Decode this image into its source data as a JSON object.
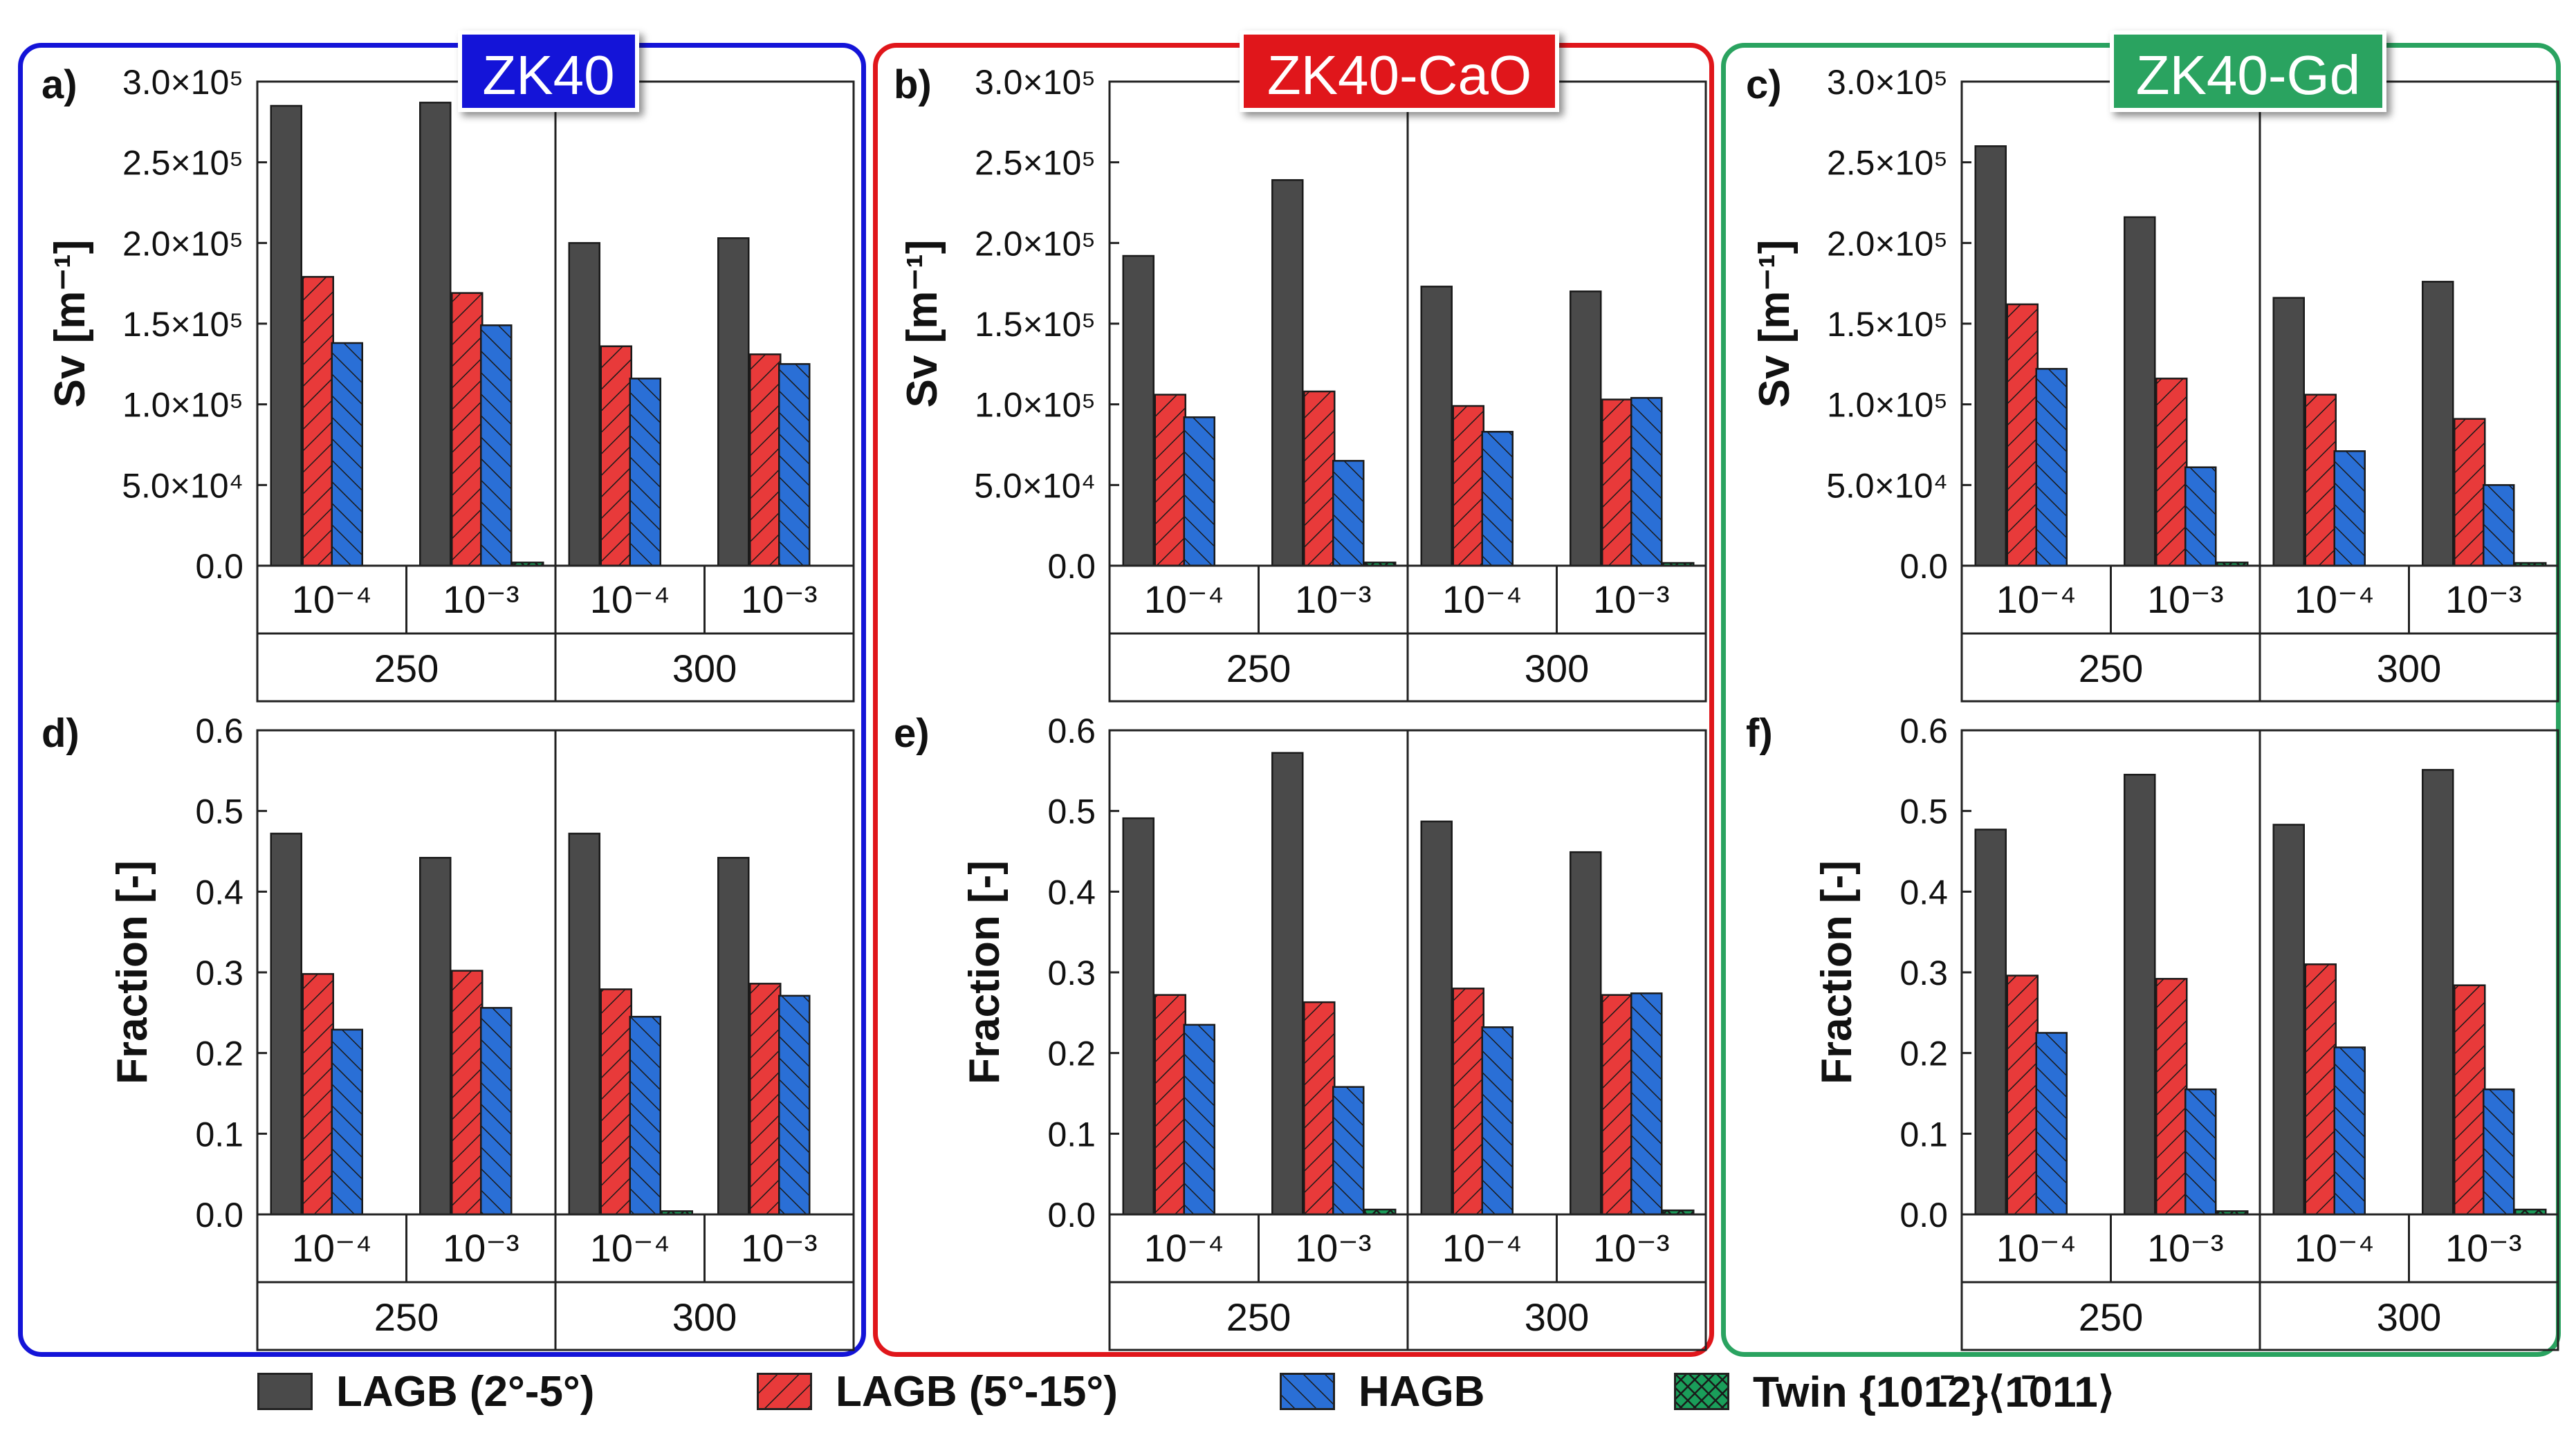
{
  "colors": {
    "lagb_2_5": "#4a4a4a",
    "lagb_5_15": "#e83a3a",
    "hagb": "#2a6fd6",
    "twin": "#1a9e5a",
    "zk40_frame": "#1414d8",
    "zk40cao_frame": "#e0161b",
    "zk40gd_frame": "#2aa360"
  },
  "alloy_tags": [
    {
      "label": "ZK40",
      "color": "#1414d8"
    },
    {
      "label": "ZK40-CaO",
      "color": "#e0161b"
    },
    {
      "label": "ZK40-Gd",
      "color": "#2aa360"
    }
  ],
  "legend": [
    {
      "label": "LAGB (2°-5°)",
      "color": "#4a4a4a",
      "pattern": "solid"
    },
    {
      "label": "LAGB (5°-15°)",
      "color": "#e83a3a",
      "pattern": "hatch-up"
    },
    {
      "label": "HAGB",
      "color": "#2a6fd6",
      "pattern": "hatch-down"
    },
    {
      "label": "Twin {101̄2}⟨1̄011⟩",
      "color": "#1a9e5a",
      "pattern": "cross"
    }
  ],
  "chart_data": [
    {
      "type": "bar",
      "panel": "a)",
      "alloy": "ZK40",
      "ylabel": "Sv [m⁻¹]",
      "ylim": [
        0,
        300000
      ],
      "yticks": [
        "0.0",
        "5.0×10⁴",
        "1.0×10⁵",
        "1.5×10⁵",
        "2.0×10⁵",
        "2.5×10⁵",
        "3.0×10⁵"
      ],
      "strain_rates": [
        "10⁻⁴",
        "10⁻³",
        "10⁻⁴",
        "10⁻³"
      ],
      "temperatures": [
        "250",
        "300"
      ],
      "series": [
        {
          "name": "LAGB (2°-5°)",
          "values": [
            285000,
            287000,
            200000,
            203000
          ]
        },
        {
          "name": "LAGB (5°-15°)",
          "values": [
            179000,
            169000,
            136000,
            131000
          ]
        },
        {
          "name": "HAGB",
          "values": [
            138000,
            149000,
            116000,
            125000
          ]
        },
        {
          "name": "Twin",
          "values": [
            0,
            2000,
            0,
            0
          ]
        }
      ]
    },
    {
      "type": "bar",
      "panel": "b)",
      "alloy": "ZK40-CaO",
      "ylabel": "Sv [m⁻¹]",
      "ylim": [
        0,
        300000
      ],
      "yticks": [
        "0.0",
        "5.0×10⁴",
        "1.0×10⁵",
        "1.5×10⁵",
        "2.0×10⁵",
        "2.5×10⁵",
        "3.0×10⁵"
      ],
      "strain_rates": [
        "10⁻⁴",
        "10⁻³",
        "10⁻⁴",
        "10⁻³"
      ],
      "temperatures": [
        "250",
        "300"
      ],
      "series": [
        {
          "name": "LAGB (2°-5°)",
          "values": [
            192000,
            239000,
            173000,
            170000
          ]
        },
        {
          "name": "LAGB (5°-15°)",
          "values": [
            106000,
            108000,
            99000,
            103000
          ]
        },
        {
          "name": "HAGB",
          "values": [
            92000,
            65000,
            83000,
            104000
          ]
        },
        {
          "name": "Twin",
          "values": [
            0,
            2000,
            0,
            1500
          ]
        }
      ]
    },
    {
      "type": "bar",
      "panel": "c)",
      "alloy": "ZK40-Gd",
      "ylabel": "Sv [m⁻¹]",
      "ylim": [
        0,
        300000
      ],
      "yticks": [
        "0.0",
        "5.0×10⁴",
        "1.0×10⁵",
        "1.5×10⁵",
        "2.0×10⁵",
        "2.5×10⁵",
        "3.0×10⁵"
      ],
      "strain_rates": [
        "10⁻⁴",
        "10⁻³",
        "10⁻⁴",
        "10⁻³"
      ],
      "temperatures": [
        "250",
        "300"
      ],
      "series": [
        {
          "name": "LAGB (2°-5°)",
          "values": [
            260000,
            216000,
            166000,
            176000
          ]
        },
        {
          "name": "LAGB (5°-15°)",
          "values": [
            162000,
            116000,
            106000,
            91000
          ]
        },
        {
          "name": "HAGB",
          "values": [
            122000,
            61000,
            71000,
            50000
          ]
        },
        {
          "name": "Twin",
          "values": [
            0,
            2000,
            0,
            1500
          ]
        }
      ]
    },
    {
      "type": "bar",
      "panel": "d)",
      "alloy": "ZK40",
      "ylabel": "Fraction [-]",
      "ylim": [
        0,
        0.6
      ],
      "yticks": [
        "0.0",
        "0.1",
        "0.2",
        "0.3",
        "0.4",
        "0.5",
        "0.6"
      ],
      "strain_rates": [
        "10⁻⁴",
        "10⁻³",
        "10⁻⁴",
        "10⁻³"
      ],
      "temperatures": [
        "250",
        "300"
      ],
      "series": [
        {
          "name": "LAGB (2°-5°)",
          "values": [
            0.472,
            0.442,
            0.472,
            0.442
          ]
        },
        {
          "name": "LAGB (5°-15°)",
          "values": [
            0.298,
            0.302,
            0.279,
            0.286
          ]
        },
        {
          "name": "HAGB",
          "values": [
            0.229,
            0.256,
            0.245,
            0.271
          ]
        },
        {
          "name": "Twin",
          "values": [
            0,
            0,
            0.004,
            0
          ]
        }
      ]
    },
    {
      "type": "bar",
      "panel": "e)",
      "alloy": "ZK40-CaO",
      "ylabel": "Fraction [-]",
      "ylim": [
        0,
        0.6
      ],
      "yticks": [
        "0.0",
        "0.1",
        "0.2",
        "0.3",
        "0.4",
        "0.5",
        "0.6"
      ],
      "strain_rates": [
        "10⁻⁴",
        "10⁻³",
        "10⁻⁴",
        "10⁻³"
      ],
      "temperatures": [
        "250",
        "300"
      ],
      "series": [
        {
          "name": "LAGB (2°-5°)",
          "values": [
            0.491,
            0.572,
            0.487,
            0.449
          ]
        },
        {
          "name": "LAGB (5°-15°)",
          "values": [
            0.272,
            0.263,
            0.28,
            0.272
          ]
        },
        {
          "name": "HAGB",
          "values": [
            0.235,
            0.158,
            0.232,
            0.274
          ]
        },
        {
          "name": "Twin",
          "values": [
            0,
            0.006,
            0,
            0.005
          ]
        }
      ]
    },
    {
      "type": "bar",
      "panel": "f)",
      "alloy": "ZK40-Gd",
      "ylabel": "Fraction [-]",
      "ylim": [
        0,
        0.6
      ],
      "yticks": [
        "0.0",
        "0.1",
        "0.2",
        "0.3",
        "0.4",
        "0.5",
        "0.6"
      ],
      "strain_rates": [
        "10⁻⁴",
        "10⁻³",
        "10⁻⁴",
        "10⁻³"
      ],
      "temperatures": [
        "250",
        "300"
      ],
      "series": [
        {
          "name": "LAGB (2°-5°)",
          "values": [
            0.477,
            0.545,
            0.483,
            0.551
          ]
        },
        {
          "name": "LAGB (5°-15°)",
          "values": [
            0.296,
            0.292,
            0.31,
            0.284
          ]
        },
        {
          "name": "HAGB",
          "values": [
            0.225,
            0.155,
            0.207,
            0.155
          ]
        },
        {
          "name": "Twin",
          "values": [
            0,
            0.004,
            0,
            0.006
          ]
        }
      ]
    }
  ]
}
